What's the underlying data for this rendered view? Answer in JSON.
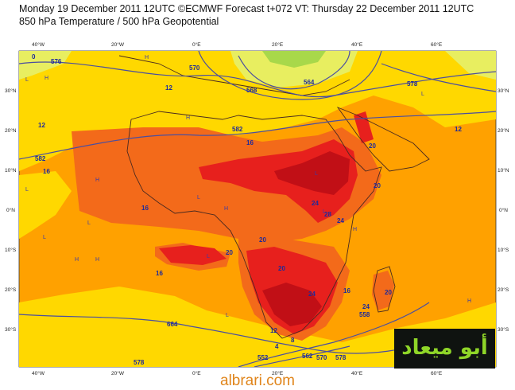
{
  "header": {
    "line1": "Monday 19 December 2011 12UTC ©ECMWF Forecast t+072 VT: Thursday 22 December 2011 12UTC",
    "line2": "850 hPa Temperature / 500 hPa Geopotential"
  },
  "axes": {
    "lon_labels": [
      "40°W",
      "20°W",
      "0°E",
      "20°E",
      "40°E",
      "60°E"
    ],
    "lat_labels": [
      "30°N",
      "20°N",
      "10°N",
      "0°N",
      "10°S",
      "20°S",
      "30°S"
    ]
  },
  "contour_labels": [
    "576",
    "576",
    "564",
    "568",
    "570",
    "578",
    "582",
    "582",
    "12",
    "12",
    "12",
    "16",
    "16",
    "16",
    "16",
    "16",
    "20",
    "20",
    "20",
    "20",
    "20",
    "20",
    "24",
    "24",
    "24",
    "24",
    "28",
    "12",
    "8",
    "4",
    "0",
    "578",
    "664",
    "562",
    "552",
    "570",
    "558",
    "578"
  ],
  "pressure_markers": [
    "H",
    "H",
    "H",
    "H",
    "H",
    "H",
    "H",
    "H",
    "H",
    "L",
    "L",
    "L",
    "L",
    "L",
    "L",
    "L",
    "L",
    "L",
    "L"
  ],
  "colors": {
    "temp_4": "#a8d84a",
    "temp_8": "#e8ee60",
    "temp_12": "#ffd800",
    "temp_16": "#ffa100",
    "temp_20": "#f36a1a",
    "temp_24": "#e7201d",
    "temp_28": "#c10f16",
    "contour": "#4a4ea0",
    "coast": "#4a2a20"
  },
  "logo": {
    "text": "أبو ميعاد"
  },
  "footer": {
    "site": "albrari.com"
  }
}
